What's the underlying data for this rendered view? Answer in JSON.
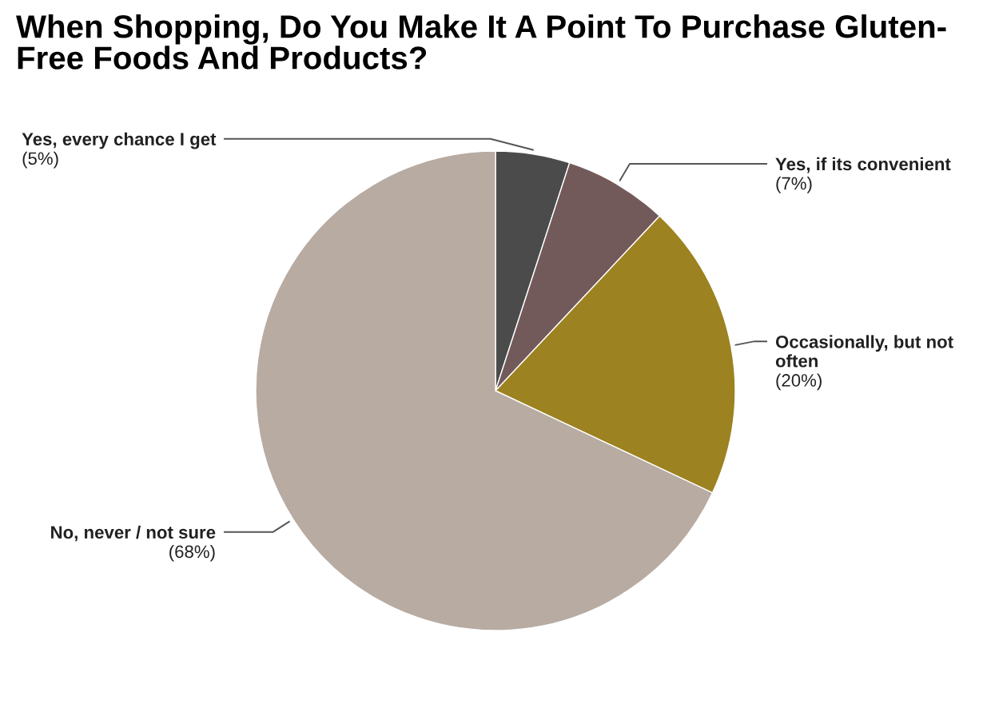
{
  "chart_data": {
    "type": "pie",
    "title": "When Shopping, Do You Make It A Point To Purchase Gluten-Free Foods And Products?",
    "categories": [
      "Yes, every chance I get",
      "Yes, if its convenient",
      "Occasionally, but not often",
      "No, never / not sure"
    ],
    "values": [
      5,
      7,
      20,
      68
    ],
    "colors": [
      "#4b4b4b",
      "#735a5a",
      "#9c8220",
      "#b8aba2"
    ],
    "value_labels": [
      "(5%)",
      "(7%)",
      "(20%)",
      "(68%)"
    ]
  }
}
